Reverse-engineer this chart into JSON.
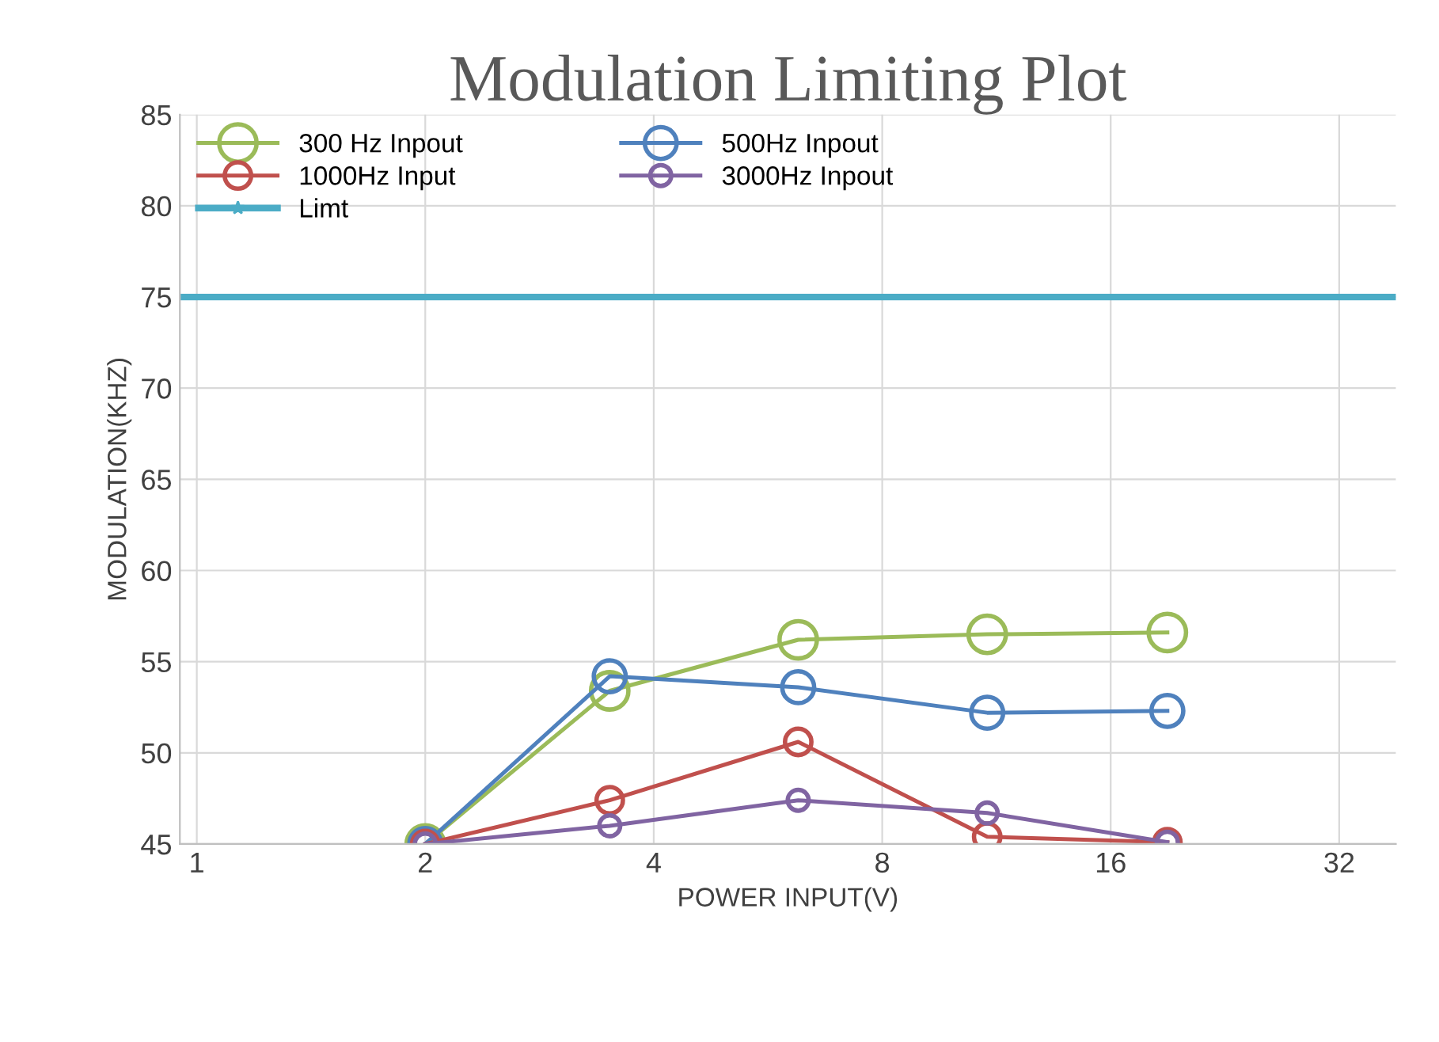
{
  "chart_data": {
    "type": "line",
    "title": "Modulation Limiting Plot",
    "xlabel": "POWER INPUT(V)",
    "ylabel": "MODULATION(KHZ)",
    "x": [
      2,
      3.5,
      6.2,
      11,
      19
    ],
    "series": [
      {
        "name": "300 Hz Inpout",
        "color": "#9bbb59",
        "values": [
          45,
          53.4,
          56.2,
          56.5,
          56.6
        ]
      },
      {
        "name": "500Hz Inpout",
        "color": "#4f81bd",
        "values": [
          45,
          54.2,
          53.6,
          52.2,
          52.3
        ]
      },
      {
        "name": "1000Hz Input",
        "color": "#c0504d",
        "values": [
          45,
          47.4,
          50.6,
          45.4,
          45.1
        ]
      },
      {
        "name": "3000Hz Inpout",
        "color": "#8064a2",
        "values": [
          45,
          46,
          47.4,
          46.7,
          45.1
        ]
      }
    ],
    "ref_lines": [
      {
        "axis": "y",
        "value": 75,
        "label": "Limt",
        "color": "#4bacc6"
      }
    ],
    "log": "x",
    "xlim": [
      0.95,
      38
    ],
    "xticks": [
      1,
      2,
      4,
      8,
      16,
      32
    ],
    "ylim": [
      45,
      85
    ],
    "yticks": [
      45,
      50,
      55,
      60,
      65,
      70,
      75,
      80,
      85
    ],
    "grid": true,
    "legend": "top left",
    "marker": "circle",
    "line_style": "solid"
  }
}
